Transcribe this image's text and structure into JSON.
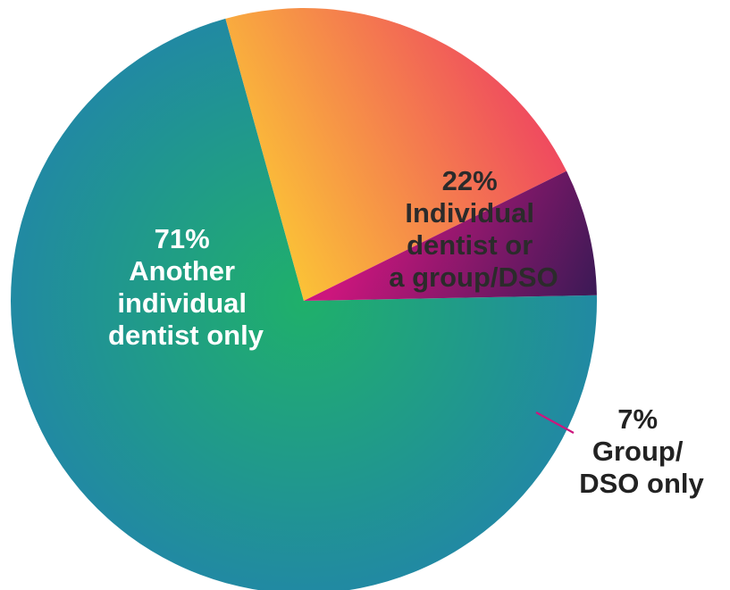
{
  "chart_data": {
    "type": "pie",
    "slices": [
      {
        "value": 71,
        "pct_label": "71%",
        "label_lines": [
          "Another",
          "individual",
          "dentist only"
        ],
        "colors": [
          "#1fb06a",
          "#2189a3"
        ]
      },
      {
        "value": 22,
        "pct_label": "22%",
        "label_lines": [
          "Individual",
          "dentist or",
          "a group/DSO"
        ],
        "colors": [
          "#fbc137",
          "#ee3e63"
        ]
      },
      {
        "value": 7,
        "pct_label": "7%",
        "label_lines": [
          "Group/",
          "DSO only"
        ],
        "colors": [
          "#cc167d",
          "#231a4f"
        ]
      }
    ],
    "label_colors": [
      "#ffffff",
      "#2b2b2b",
      "#222222"
    ],
    "leader_line_color": "#cc167d"
  }
}
